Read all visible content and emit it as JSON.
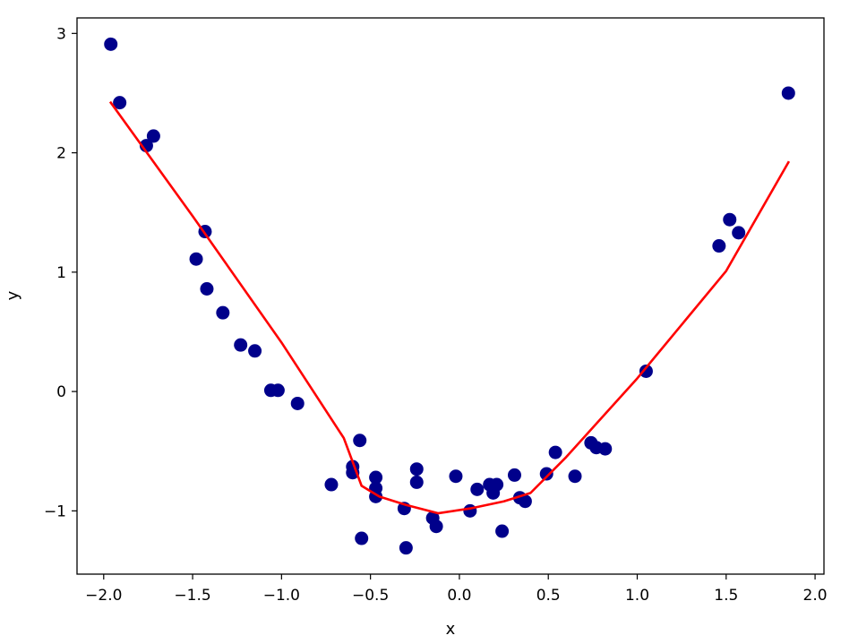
{
  "chart_data": {
    "type": "scatter",
    "xlabel": "x",
    "ylabel": "y",
    "xlim": [
      -2.15,
      2.05
    ],
    "ylim": [
      -1.53,
      3.13
    ],
    "xticks": [
      -2.0,
      -1.5,
      -1.0,
      -0.5,
      0.0,
      0.5,
      1.0,
      1.5,
      2.0
    ],
    "xtick_labels": [
      "−2.0",
      "−1.5",
      "−1.0",
      "−0.5",
      "0.0",
      "0.5",
      "1.0",
      "1.5",
      "2.0"
    ],
    "yticks": [
      -1,
      0,
      1,
      2,
      3
    ],
    "ytick_labels": [
      "−1",
      "0",
      "1",
      "2",
      "3"
    ],
    "grid": false,
    "series": [
      {
        "kind": "scatter",
        "color": "#00008b",
        "points": [
          [
            -1.96,
            2.91
          ],
          [
            -1.91,
            2.42
          ],
          [
            -1.76,
            2.06
          ],
          [
            -1.72,
            2.14
          ],
          [
            -1.48,
            1.11
          ],
          [
            -1.43,
            1.34
          ],
          [
            -1.42,
            0.86
          ],
          [
            -1.33,
            0.66
          ],
          [
            -1.23,
            0.39
          ],
          [
            -1.15,
            0.34
          ],
          [
            -1.06,
            0.01
          ],
          [
            -1.02,
            0.01
          ],
          [
            -0.91,
            -0.1
          ],
          [
            -0.72,
            -0.78
          ],
          [
            -0.6,
            -0.63
          ],
          [
            -0.6,
            -0.68
          ],
          [
            -0.56,
            -0.41
          ],
          [
            -0.55,
            -1.23
          ],
          [
            -0.47,
            -0.72
          ],
          [
            -0.47,
            -0.81
          ],
          [
            -0.47,
            -0.88
          ],
          [
            -0.31,
            -0.98
          ],
          [
            -0.3,
            -1.31
          ],
          [
            -0.24,
            -0.65
          ],
          [
            -0.24,
            -0.76
          ],
          [
            -0.15,
            -1.06
          ],
          [
            -0.13,
            -1.13
          ],
          [
            -0.02,
            -0.71
          ],
          [
            0.06,
            -1.0
          ],
          [
            0.1,
            -0.82
          ],
          [
            0.17,
            -0.78
          ],
          [
            0.19,
            -0.85
          ],
          [
            0.21,
            -0.78
          ],
          [
            0.24,
            -1.17
          ],
          [
            0.31,
            -0.7
          ],
          [
            0.34,
            -0.89
          ],
          [
            0.37,
            -0.92
          ],
          [
            0.49,
            -0.69
          ],
          [
            0.54,
            -0.51
          ],
          [
            0.65,
            -0.71
          ],
          [
            0.74,
            -0.43
          ],
          [
            0.77,
            -0.47
          ],
          [
            0.82,
            -0.48
          ],
          [
            1.05,
            0.17
          ],
          [
            1.46,
            1.22
          ],
          [
            1.52,
            1.44
          ],
          [
            1.57,
            1.33
          ],
          [
            1.85,
            2.5
          ]
        ]
      },
      {
        "kind": "line",
        "color": "#ff0000",
        "points": [
          [
            -1.96,
            2.42
          ],
          [
            -1.5,
            1.47
          ],
          [
            -1.0,
            0.41
          ],
          [
            -0.65,
            -0.39
          ],
          [
            -0.55,
            -0.79
          ],
          [
            -0.45,
            -0.88
          ],
          [
            -0.3,
            -0.95
          ],
          [
            -0.12,
            -1.02
          ],
          [
            0.06,
            -0.98
          ],
          [
            0.25,
            -0.92
          ],
          [
            0.4,
            -0.85
          ],
          [
            0.6,
            -0.55
          ],
          [
            1.0,
            0.11
          ],
          [
            1.5,
            1.01
          ],
          [
            1.85,
            1.92
          ]
        ]
      }
    ]
  }
}
